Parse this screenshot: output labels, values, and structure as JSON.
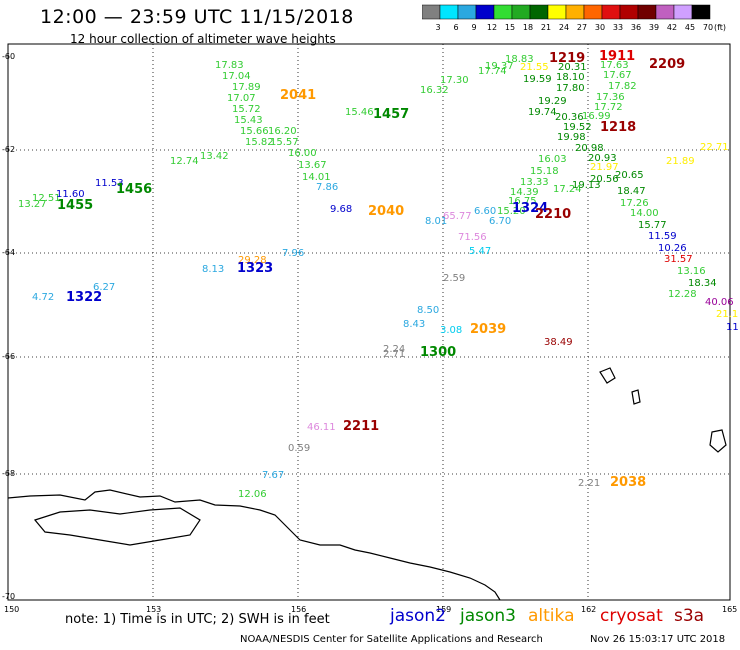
{
  "title": "12:00 — 23:59 UTC 11/15/2018",
  "subtitle": "12 hour collection of altimeter wave heights",
  "colorbar": {
    "unit": "(ft)",
    "ticks": [
      "3",
      "6",
      "9",
      "12",
      "15",
      "18",
      "21",
      "24",
      "27",
      "30",
      "33",
      "36",
      "39",
      "42",
      "45",
      "70"
    ],
    "colors": [
      "#808080",
      "#00e5ff",
      "#2ba8e0",
      "#0000cc",
      "#33dd33",
      "#22aa22",
      "#006600",
      "#ffff00",
      "#ffb000",
      "#ff6600",
      "#e01010",
      "#b00000",
      "#700000",
      "#c060c0",
      "#d0a0ff",
      "#000000"
    ]
  },
  "axes": {
    "lat_labels": [
      "-60",
      "-62",
      "-64",
      "-66",
      "-68",
      "-70"
    ],
    "lon_labels": [
      "150",
      "153",
      "156",
      "159",
      "162",
      "165"
    ]
  },
  "colors": {
    "jason2": "#0000cc",
    "jason3": "#008800",
    "altika": "#ff9900",
    "cryosat": "#dd0000",
    "s3a": "#990000"
  },
  "legend": [
    {
      "label": "jason2",
      "color": "#0000cc"
    },
    {
      "label": "jason3",
      "color": "#008800"
    },
    {
      "label": "altika",
      "color": "#ff9900"
    },
    {
      "label": "cryosat",
      "color": "#dd0000"
    },
    {
      "label": "s3a",
      "color": "#990000"
    }
  ],
  "note": "note: 1) Time is in UTC; 2) SWH is in feet",
  "credit": "NOAA/NESDIS Center for Satellite Applications and Research",
  "generated": "Nov 26 15:03:17 UTC 2018",
  "map_labels": [
    {
      "t": "17.83",
      "c": "#33cc33"
    },
    {
      "t": "17.04",
      "c": "#33cc33"
    },
    {
      "t": "17.89",
      "c": "#33cc33"
    },
    {
      "t": "17.07",
      "c": "#33cc33"
    },
    {
      "t": "15.72",
      "c": "#33cc33"
    },
    {
      "t": "15.43",
      "c": "#33cc33"
    },
    {
      "t": "15.66",
      "c": "#33cc33"
    },
    {
      "t": "15.82",
      "c": "#33cc33"
    },
    {
      "t": "15.57",
      "c": "#33cc33"
    },
    {
      "t": "16.20",
      "c": "#33cc33"
    },
    {
      "t": "16.00",
      "c": "#33cc33"
    },
    {
      "t": "13.67",
      "c": "#33cc33"
    },
    {
      "t": "14.01",
      "c": "#33cc33"
    },
    {
      "t": "2041",
      "c": "#ff9900"
    },
    {
      "t": "1457",
      "c": "#008800"
    },
    {
      "t": "15.46",
      "c": "#33cc33"
    },
    {
      "t": "16.32",
      "c": "#33cc33"
    },
    {
      "t": "17.30",
      "c": "#33cc33"
    },
    {
      "t": "17.74",
      "c": "#33cc33"
    },
    {
      "t": "19.37",
      "c": "#33cc33"
    },
    {
      "t": "18.83",
      "c": "#33cc33"
    },
    {
      "t": "21.55",
      "c": "#ffee00"
    },
    {
      "t": "1219",
      "c": "#990000"
    },
    {
      "t": "1911",
      "c": "#dd0000"
    },
    {
      "t": "2209",
      "c": "#990000"
    },
    {
      "t": "20.31",
      "c": "#008800"
    },
    {
      "t": "19.59",
      "c": "#008800"
    },
    {
      "t": "18.10",
      "c": "#008800"
    },
    {
      "t": "17.80",
      "c": "#008800"
    },
    {
      "t": "17.63",
      "c": "#33cc33"
    },
    {
      "t": "17.67",
      "c": "#33cc33"
    },
    {
      "t": "17.82",
      "c": "#33cc33"
    },
    {
      "t": "17.36",
      "c": "#33cc33"
    },
    {
      "t": "19.29",
      "c": "#008800"
    },
    {
      "t": "17.72",
      "c": "#33cc33"
    },
    {
      "t": "19.74",
      "c": "#008800"
    },
    {
      "t": "20.36",
      "c": "#008800"
    },
    {
      "t": "16.99",
      "c": "#33cc33"
    },
    {
      "t": "19.52",
      "c": "#008800"
    },
    {
      "t": "1218",
      "c": "#990000"
    },
    {
      "t": "19.98",
      "c": "#008800"
    },
    {
      "t": "20.98",
      "c": "#008800"
    },
    {
      "t": "16.03",
      "c": "#33cc33"
    },
    {
      "t": "20.93",
      "c": "#008800"
    },
    {
      "t": "15.18",
      "c": "#33cc33"
    },
    {
      "t": "21.97",
      "c": "#ffee00"
    },
    {
      "t": "21.89",
      "c": "#ffee00"
    },
    {
      "t": "22.71",
      "c": "#ffee00"
    },
    {
      "t": "20.65",
      "c": "#008800"
    },
    {
      "t": "13.33",
      "c": "#33cc33"
    },
    {
      "t": "17.24",
      "c": "#33cc33"
    },
    {
      "t": "19.13",
      "c": "#008800"
    },
    {
      "t": "20.56",
      "c": "#008800"
    },
    {
      "t": "14.39",
      "c": "#33cc33"
    },
    {
      "t": "18.47",
      "c": "#008800"
    },
    {
      "t": "16.75",
      "c": "#33cc33"
    },
    {
      "t": "17.26",
      "c": "#33cc33"
    },
    {
      "t": "15.20",
      "c": "#33cc33"
    },
    {
      "t": "14.00",
      "c": "#33cc33"
    },
    {
      "t": "15.77",
      "c": "#008800"
    },
    {
      "t": "11.59",
      "c": "#0000cc"
    },
    {
      "t": "10.26",
      "c": "#0000cc"
    },
    {
      "t": "31.57",
      "c": "#dd0000"
    },
    {
      "t": "13.16",
      "c": "#33cc33"
    },
    {
      "t": "18.34",
      "c": "#008800"
    },
    {
      "t": "12.28",
      "c": "#33cc33"
    },
    {
      "t": "40.06",
      "c": "#990099"
    },
    {
      "t": "21.1",
      "c": "#ffee00"
    },
    {
      "t": "11",
      "c": "#0000cc"
    },
    {
      "t": "1324",
      "c": "#0000cc"
    },
    {
      "t": "2210",
      "c": "#990000"
    },
    {
      "t": "6.60",
      "c": "#2ba8e0"
    },
    {
      "t": "6.70",
      "c": "#2ba8e0"
    },
    {
      "t": "65.77",
      "c": "#dd88dd"
    },
    {
      "t": "71.56",
      "c": "#dd88dd"
    },
    {
      "t": "8.01",
      "c": "#2ba8e0"
    },
    {
      "t": "5.47",
      "c": "#00ccee"
    },
    {
      "t": "9.68",
      "c": "#0000cc"
    },
    {
      "t": "2040",
      "c": "#ff9900"
    },
    {
      "t": "7.86",
      "c": "#2ba8e0"
    },
    {
      "t": "13.27",
      "c": "#33cc33"
    },
    {
      "t": "12.51",
      "c": "#33cc33"
    },
    {
      "t": "11.60",
      "c": "#0000cc"
    },
    {
      "t": "1455",
      "c": "#008800"
    },
    {
      "t": "11.53",
      "c": "#0000cc"
    },
    {
      "t": "1456",
      "c": "#008800"
    },
    {
      "t": "12.74",
      "c": "#33cc33"
    },
    {
      "t": "13.42",
      "c": "#33cc33"
    },
    {
      "t": "29.28",
      "c": "#ff9900"
    },
    {
      "t": "7.96",
      "c": "#2ba8e0"
    },
    {
      "t": "8.13",
      "c": "#2ba8e0"
    },
    {
      "t": "1323",
      "c": "#0000cc"
    },
    {
      "t": "4.72",
      "c": "#2ba8e0"
    },
    {
      "t": "1322",
      "c": "#0000cc"
    },
    {
      "t": "6.27",
      "c": "#2ba8e0"
    },
    {
      "t": "2.59",
      "c": "#808080"
    },
    {
      "t": "8.50",
      "c": "#2ba8e0"
    },
    {
      "t": "8.43",
      "c": "#2ba8e0"
    },
    {
      "t": "3.08",
      "c": "#00ccee"
    },
    {
      "t": "2039",
      "c": "#ff9900"
    },
    {
      "t": "38.49",
      "c": "#990000"
    },
    {
      "t": "2.24",
      "c": "#808080"
    },
    {
      "t": "2.71",
      "c": "#808080"
    },
    {
      "t": "1300",
      "c": "#008800"
    },
    {
      "t": "46.11",
      "c": "#dd88dd"
    },
    {
      "t": "2211",
      "c": "#990000"
    },
    {
      "t": "0.59",
      "c": "#808080"
    },
    {
      "t": "7.67",
      "c": "#2ba8e0"
    },
    {
      "t": "12.06",
      "c": "#33cc33"
    },
    {
      "t": "2.21",
      "c": "#808080"
    },
    {
      "t": "2038",
      "c": "#ff9900"
    }
  ]
}
